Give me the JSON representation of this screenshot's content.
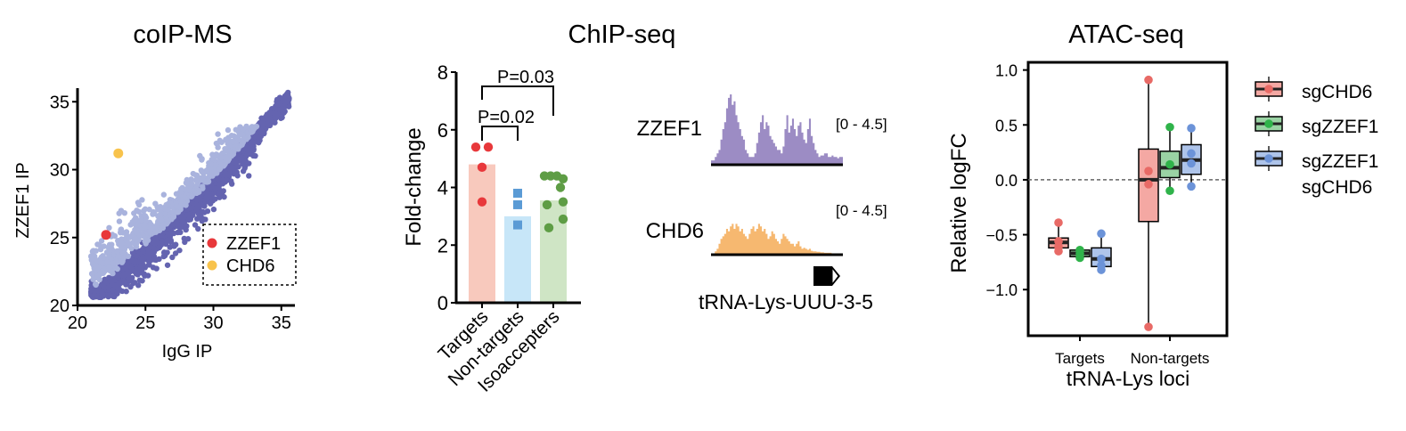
{
  "colors": {
    "scatter_dark": "#6464b0",
    "scatter_light": "#a9b3dd",
    "zzef1": "#e8383b",
    "chd6": "#f8c34c",
    "bar_targets": "#f8c9bd",
    "bar_nontargets": "#c7e6f8",
    "bar_isoacc": "#cfe5c5",
    "pt_targets": "#e8383b",
    "pt_nontargets": "#5b9bd5",
    "pt_isoacc": "#5e9d45",
    "track_zzef1": "#9c8cc4",
    "track_chd6": "#f6b870",
    "box_sgCHD6": "#f4a8a3",
    "box_sgZZEF1": "#9ad3a4",
    "box_sgZZEF1_sgCHD6": "#aec4ea",
    "pt_sgCHD6": "#e86a66",
    "pt_sgZZEF1": "#2fb34a",
    "pt_sgZZEF1_sgCHD6": "#6c93d8"
  },
  "panelA": {
    "title": "coIP-MS",
    "chart_data": {
      "type": "scatter",
      "xlabel": "IgG IP",
      "ylabel": "ZZEF1 IP",
      "xlim": [
        20,
        36
      ],
      "ylim": [
        20,
        36
      ],
      "xticks": [
        "20",
        "25",
        "30",
        "35"
      ],
      "yticks": [
        "20",
        "25",
        "30",
        "35"
      ],
      "highlighted": [
        {
          "name": "ZZEF1",
          "x": 22.1,
          "y": 25.2
        },
        {
          "name": "CHD6",
          "x": 23.0,
          "y": 31.2
        }
      ],
      "legend": {
        "entries": [
          "ZZEF1",
          "CHD6"
        ],
        "position": "bottom-right"
      },
      "trend_points": [
        [
          21.5,
          20.8
        ],
        [
          22.5,
          21.6
        ],
        [
          23.5,
          22.5
        ],
        [
          24.5,
          23.5
        ],
        [
          25.5,
          24.4
        ],
        [
          26.5,
          25.4
        ],
        [
          27.5,
          26.4
        ],
        [
          28.5,
          27.4
        ],
        [
          29.5,
          28.4
        ],
        [
          30.5,
          29.5
        ],
        [
          31.5,
          30.6
        ],
        [
          32.5,
          31.8
        ],
        [
          33.5,
          33.0
        ],
        [
          34.5,
          34.1
        ],
        [
          35.0,
          34.6
        ],
        [
          35.6,
          35.3
        ]
      ]
    }
  },
  "panelB": {
    "title": "ChIP-seq",
    "chart_data": {
      "type": "bar",
      "categories": [
        "Targets",
        "Non-targets",
        "Isoaccepters"
      ],
      "values": [
        4.8,
        3.0,
        3.55
      ],
      "points": [
        [
          5.4,
          5.4,
          4.7,
          3.5
        ],
        [
          3.8,
          3.4,
          2.7
        ],
        [
          4.4,
          4.4,
          4.4,
          4.3,
          4.0,
          3.5,
          3.4,
          2.9,
          2.6
        ]
      ],
      "ylabel": "Fold-change",
      "ylim": [
        0,
        8
      ],
      "yticks": [
        "0",
        "2",
        "4",
        "6",
        "8"
      ],
      "annotations": [
        "P=0.02",
        "P=0.03"
      ]
    }
  },
  "tracks": {
    "rows": [
      {
        "label": "ZZEF1",
        "range": "[0 - 4.5]"
      },
      {
        "label": "CHD6",
        "range": "[0 - 4.5]"
      }
    ],
    "gene": "tRNA-Lys-UUU-3-5",
    "profiles": {
      "ZZEF1": [
        0.05,
        0.05,
        0.1,
        0.15,
        0.2,
        0.35,
        0.5,
        0.6,
        0.8,
        0.95,
        1.0,
        0.85,
        0.9,
        0.7,
        0.6,
        0.5,
        0.4,
        0.35,
        0.2,
        0.15,
        0.1,
        0.1,
        0.1,
        0.15,
        0.3,
        0.45,
        0.6,
        0.7,
        0.5,
        0.6,
        0.55,
        0.4,
        0.35,
        0.3,
        0.25,
        0.2,
        0.2,
        0.15,
        0.25,
        0.5,
        0.7,
        0.45,
        0.55,
        0.65,
        0.5,
        0.4,
        0.55,
        0.6,
        0.45,
        0.35,
        0.3,
        0.5,
        0.65,
        0.4,
        0.3,
        0.2,
        0.15,
        0.1,
        0.12,
        0.12,
        0.15,
        0.15,
        0.1,
        0.1,
        0.12,
        0.1,
        0.1,
        0.08,
        0.1,
        0.1
      ],
      "CHD6": [
        0.0,
        0.0,
        0.05,
        0.1,
        0.2,
        0.3,
        0.35,
        0.4,
        0.5,
        0.45,
        0.55,
        0.6,
        0.5,
        0.6,
        0.55,
        0.45,
        0.5,
        0.4,
        0.35,
        0.3,
        0.4,
        0.5,
        0.55,
        0.45,
        0.5,
        0.6,
        0.55,
        0.45,
        0.5,
        0.4,
        0.3,
        0.35,
        0.45,
        0.4,
        0.3,
        0.25,
        0.2,
        0.3,
        0.4,
        0.35,
        0.3,
        0.25,
        0.2,
        0.2,
        0.15,
        0.2,
        0.25,
        0.15,
        0.1,
        0.12,
        0.1,
        0.08,
        0.1,
        0.06,
        0.05,
        0.05,
        0.04,
        0.04,
        0.03,
        0.03,
        0.02,
        0.02,
        0.02,
        0.02,
        0.01,
        0.01,
        0.01,
        0.0,
        0.0,
        0.0
      ]
    }
  },
  "panelC": {
    "title": "ATAC-seq",
    "chart_data": {
      "type": "box",
      "xlabel": "tRNA-Lys loci",
      "ylabel": "Relative logFC",
      "categories": [
        "Targets",
        "Non-targets"
      ],
      "ylim": [
        -1.42,
        1.07
      ],
      "yticks": [
        "-1.0",
        "-0.5",
        "0.0",
        "0.5",
        "1.0"
      ],
      "reference_line": 0,
      "series": [
        {
          "name": "sgCHD6",
          "boxes": [
            {
              "q1": -0.62,
              "median": -0.57,
              "q3": -0.53,
              "min": -0.64,
              "max": -0.39,
              "points": [
                -0.39,
                -0.56,
                -0.61,
                -0.65
              ]
            },
            {
              "q1": -0.38,
              "median": 0.0,
              "q3": 0.28,
              "min": -1.33,
              "max": 0.91,
              "points": [
                0.91,
                0.08,
                -0.04,
                -1.34
              ]
            }
          ]
        },
        {
          "name": "sgZZEF1",
          "boxes": [
            {
              "q1": -0.7,
              "median": -0.67,
              "q3": -0.64,
              "min": -0.72,
              "max": -0.62,
              "points": [
                -0.64,
                -0.67,
                -0.71
              ]
            },
            {
              "q1": 0.02,
              "median": 0.11,
              "q3": 0.26,
              "min": -0.1,
              "max": 0.48,
              "points": [
                0.48,
                0.14,
                -0.1
              ]
            }
          ]
        },
        {
          "name": "sgZZEF1\nsgCHD6",
          "boxes": [
            {
              "q1": -0.79,
              "median": -0.72,
              "q3": -0.62,
              "min": -0.82,
              "max": -0.49,
              "points": [
                -0.49,
                -0.72,
                -0.78,
                -0.82
              ]
            },
            {
              "q1": 0.05,
              "median": 0.18,
              "q3": 0.32,
              "min": -0.06,
              "max": 0.47,
              "points": [
                0.47,
                0.24,
                0.15,
                -0.06
              ]
            }
          ]
        }
      ],
      "legend": {
        "entries": [
          "sgCHD6",
          "sgZZEF1",
          "sgZZEF1",
          "sgCHD6"
        ],
        "position": "right"
      }
    }
  }
}
